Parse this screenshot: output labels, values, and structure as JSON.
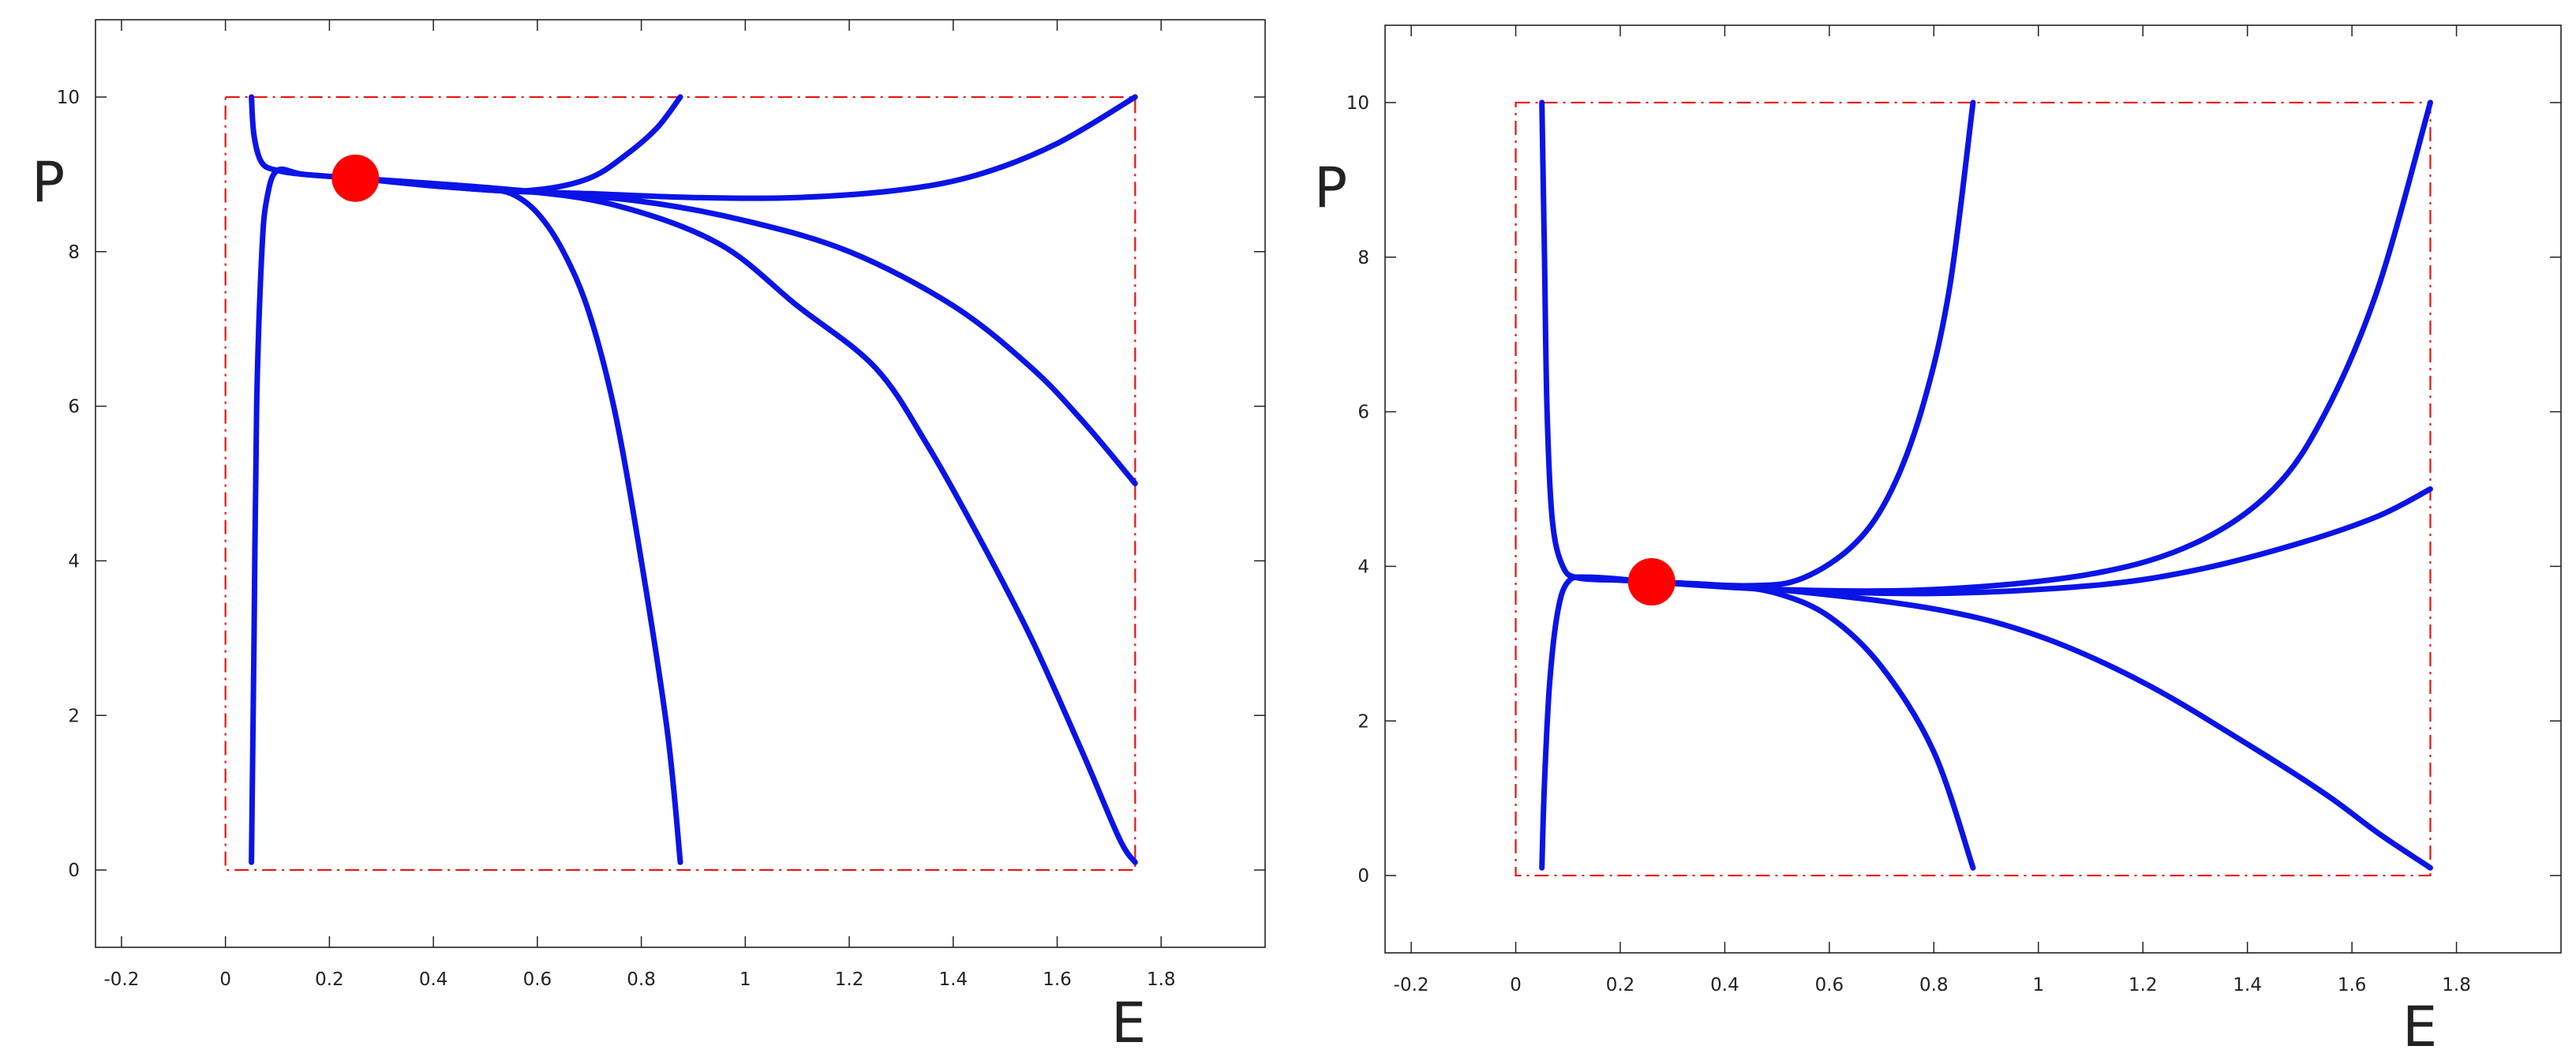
{
  "chart_data": [
    {
      "type": "line",
      "title": "",
      "xlabel": "E",
      "ylabel": "P",
      "xlim": [
        -0.25,
        2.0
      ],
      "ylim": [
        -1,
        11
      ],
      "x_ticks": [
        -0.2,
        0,
        0.2,
        0.4,
        0.6,
        0.8,
        1,
        1.2,
        1.4,
        1.6,
        1.8
      ],
      "x_tick_labels": [
        "-0.2",
        "0",
        "0.2",
        "0.4",
        "0.6",
        "0.8",
        "1",
        "1.2",
        "1.4",
        "1.6",
        "1.8"
      ],
      "y_ticks": [
        0,
        2,
        4,
        6,
        8,
        10
      ],
      "y_tick_labels": [
        "0",
        "2",
        "4",
        "6",
        "8",
        "10"
      ],
      "grid": false,
      "line_color": "#0a14e6",
      "marker_color": "#ff0000",
      "box_color": "#e8140f",
      "box": {
        "x": [
          0,
          1.75
        ],
        "y": [
          0,
          10
        ]
      },
      "equilibrium": {
        "x": 0.25,
        "y": 8.95
      },
      "series": [
        {
          "points": [
            [
              0.05,
              0.1
            ],
            [
              0.055,
              3
            ],
            [
              0.06,
              6
            ],
            [
              0.07,
              8
            ],
            [
              0.08,
              8.7
            ],
            [
              0.1,
              9.05
            ],
            [
              0.15,
              9.0
            ],
            [
              0.25,
              8.95
            ]
          ]
        },
        {
          "points": [
            [
              0.05,
              10
            ],
            [
              0.055,
              9.5
            ],
            [
              0.07,
              9.15
            ],
            [
              0.1,
              9.05
            ],
            [
              0.15,
              9.0
            ],
            [
              0.25,
              8.95
            ]
          ]
        },
        {
          "points": [
            [
              0.25,
              8.95
            ],
            [
              0.4,
              8.85
            ],
            [
              0.5,
              8.8
            ],
            [
              0.55,
              8.75
            ],
            [
              0.6,
              8.5
            ],
            [
              0.65,
              8.0
            ],
            [
              0.7,
              7.2
            ],
            [
              0.75,
              5.9
            ],
            [
              0.8,
              4.0
            ],
            [
              0.85,
              1.8
            ],
            [
              0.875,
              0.1
            ]
          ]
        },
        {
          "points": [
            [
              0.25,
              8.95
            ],
            [
              0.5,
              8.8
            ],
            [
              0.6,
              8.8
            ],
            [
              0.7,
              8.95
            ],
            [
              0.77,
              9.25
            ],
            [
              0.83,
              9.6
            ],
            [
              0.875,
              10
            ]
          ]
        },
        {
          "points": [
            [
              0.25,
              8.95
            ],
            [
              0.5,
              8.8
            ],
            [
              0.7,
              8.75
            ],
            [
              0.9,
              8.7
            ],
            [
              1.1,
              8.7
            ],
            [
              1.3,
              8.8
            ],
            [
              1.45,
              9.0
            ],
            [
              1.6,
              9.4
            ],
            [
              1.75,
              10
            ]
          ]
        },
        {
          "points": [
            [
              0.25,
              8.95
            ],
            [
              0.55,
              8.8
            ],
            [
              0.8,
              8.65
            ],
            [
              1.0,
              8.4
            ],
            [
              1.2,
              8.0
            ],
            [
              1.4,
              7.3
            ],
            [
              1.55,
              6.5
            ],
            [
              1.65,
              5.8
            ],
            [
              1.75,
              5.0
            ]
          ]
        },
        {
          "points": [
            [
              0.25,
              8.95
            ],
            [
              0.55,
              8.8
            ],
            [
              0.75,
              8.6
            ],
            [
              0.95,
              8.1
            ],
            [
              1.1,
              7.3
            ],
            [
              1.25,
              6.5
            ],
            [
              1.35,
              5.5
            ],
            [
              1.45,
              4.3
            ],
            [
              1.55,
              3.0
            ],
            [
              1.65,
              1.5
            ],
            [
              1.72,
              0.4
            ],
            [
              1.75,
              0.1
            ]
          ]
        }
      ]
    },
    {
      "type": "line",
      "title": "",
      "xlabel": "E",
      "ylabel": "P",
      "xlim": [
        -0.25,
        2.0
      ],
      "ylim": [
        -1,
        11
      ],
      "x_ticks": [
        -0.2,
        0,
        0.2,
        0.4,
        0.6,
        0.8,
        1,
        1.2,
        1.4,
        1.6,
        1.8
      ],
      "x_tick_labels": [
        "-0.2",
        "0",
        "0.2",
        "0.4",
        "0.6",
        "0.8",
        "1",
        "1.2",
        "1.4",
        "1.6",
        "1.8"
      ],
      "y_ticks": [
        0,
        2,
        4,
        6,
        8,
        10
      ],
      "y_tick_labels": [
        "0",
        "2",
        "4",
        "6",
        "8",
        "10"
      ],
      "grid": false,
      "line_color": "#0a14e6",
      "marker_color": "#ff0000",
      "box_color": "#e8140f",
      "box": {
        "x": [
          0,
          1.75
        ],
        "y": [
          0,
          10
        ]
      },
      "equilibrium": {
        "x": 0.26,
        "y": 3.8
      },
      "series": [
        {
          "points": [
            [
              0.05,
              10
            ],
            [
              0.055,
              8
            ],
            [
              0.06,
              6
            ],
            [
              0.07,
              4.6
            ],
            [
              0.09,
              4.0
            ],
            [
              0.12,
              3.85
            ],
            [
              0.2,
              3.82
            ],
            [
              0.26,
              3.8
            ]
          ]
        },
        {
          "points": [
            [
              0.05,
              0.1
            ],
            [
              0.055,
              1.2
            ],
            [
              0.065,
              2.5
            ],
            [
              0.08,
              3.4
            ],
            [
              0.1,
              3.8
            ],
            [
              0.14,
              3.86
            ],
            [
              0.26,
              3.8
            ]
          ]
        },
        {
          "points": [
            [
              0.26,
              3.8
            ],
            [
              0.4,
              3.75
            ],
            [
              0.5,
              3.65
            ],
            [
              0.6,
              3.35
            ],
            [
              0.7,
              2.7
            ],
            [
              0.8,
              1.6
            ],
            [
              0.875,
              0.1
            ]
          ]
        },
        {
          "points": [
            [
              0.26,
              3.8
            ],
            [
              0.45,
              3.75
            ],
            [
              0.55,
              3.85
            ],
            [
              0.65,
              4.3
            ],
            [
              0.72,
              5.0
            ],
            [
              0.78,
              6.1
            ],
            [
              0.83,
              7.6
            ],
            [
              0.875,
              10
            ]
          ]
        },
        {
          "points": [
            [
              0.26,
              3.8
            ],
            [
              0.5,
              3.7
            ],
            [
              0.8,
              3.7
            ],
            [
              1.1,
              3.9
            ],
            [
              1.3,
              4.3
            ],
            [
              1.45,
              5.0
            ],
            [
              1.55,
              6.0
            ],
            [
              1.65,
              7.6
            ],
            [
              1.75,
              10
            ]
          ]
        },
        {
          "points": [
            [
              0.26,
              3.8
            ],
            [
              0.5,
              3.7
            ],
            [
              0.8,
              3.65
            ],
            [
              1.1,
              3.75
            ],
            [
              1.3,
              3.95
            ],
            [
              1.5,
              4.3
            ],
            [
              1.65,
              4.65
            ],
            [
              1.75,
              5.0
            ]
          ]
        },
        {
          "points": [
            [
              0.26,
              3.8
            ],
            [
              0.5,
              3.7
            ],
            [
              0.8,
              3.45
            ],
            [
              1.0,
              3.1
            ],
            [
              1.2,
              2.5
            ],
            [
              1.4,
              1.7
            ],
            [
              1.55,
              1.05
            ],
            [
              1.65,
              0.55
            ],
            [
              1.75,
              0.1
            ]
          ]
        }
      ]
    }
  ]
}
